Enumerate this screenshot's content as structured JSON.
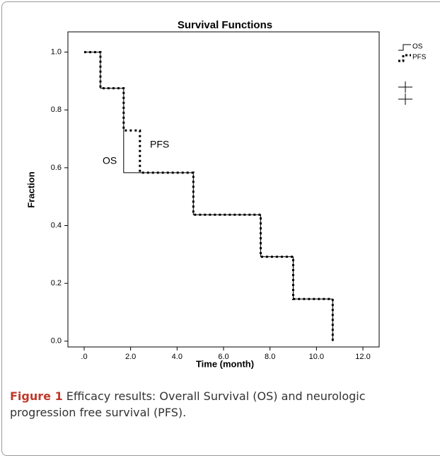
{
  "chart_data": {
    "type": "step",
    "title": "Survival Functions",
    "x_label": "Time (month)",
    "y_label": "Fraction",
    "xlim": [
      -0.7,
      12.7
    ],
    "ylim": [
      -0.02,
      1.07
    ],
    "xticks": [
      {
        "value": 0,
        "label": ".0"
      },
      {
        "value": 2,
        "label": "2.0"
      },
      {
        "value": 4,
        "label": "4.0"
      },
      {
        "value": 6,
        "label": "6.0"
      },
      {
        "value": 8,
        "label": "8.0"
      },
      {
        "value": 10,
        "label": "10.0"
      },
      {
        "value": 12,
        "label": "12.0"
      }
    ],
    "yticks": [
      {
        "value": 0,
        "label": "0.0"
      },
      {
        "value": 0.2,
        "label": "0.2"
      },
      {
        "value": 0.4,
        "label": "0.4"
      },
      {
        "value": 0.6,
        "label": "0.6"
      },
      {
        "value": 0.8,
        "label": "0.8"
      },
      {
        "value": 1,
        "label": "1.0"
      }
    ],
    "series": [
      {
        "name": "OS",
        "color": "#000000",
        "dashed": false,
        "x": [
          0,
          0.7,
          1.7,
          4.7,
          7.6,
          9.0,
          10.7
        ],
        "values": [
          1,
          0.875,
          0.583,
          0.4375,
          0.292,
          0.146,
          0.0
        ]
      },
      {
        "name": "PFS",
        "color": "#000000",
        "dashed": true,
        "x": [
          0,
          0.7,
          1.7,
          2.4,
          4.7,
          7.6,
          9.0,
          10.7
        ],
        "values": [
          1,
          0.875,
          0.729,
          0.583,
          0.4375,
          0.292,
          0.146,
          0.0
        ]
      }
    ],
    "annotations": [
      "OS",
      "PFS"
    ]
  },
  "caption": {
    "label": "Figure 1",
    "text": "Efficacy results: Overall Survival (OS) and neurologic progression free survival (PFS)."
  }
}
